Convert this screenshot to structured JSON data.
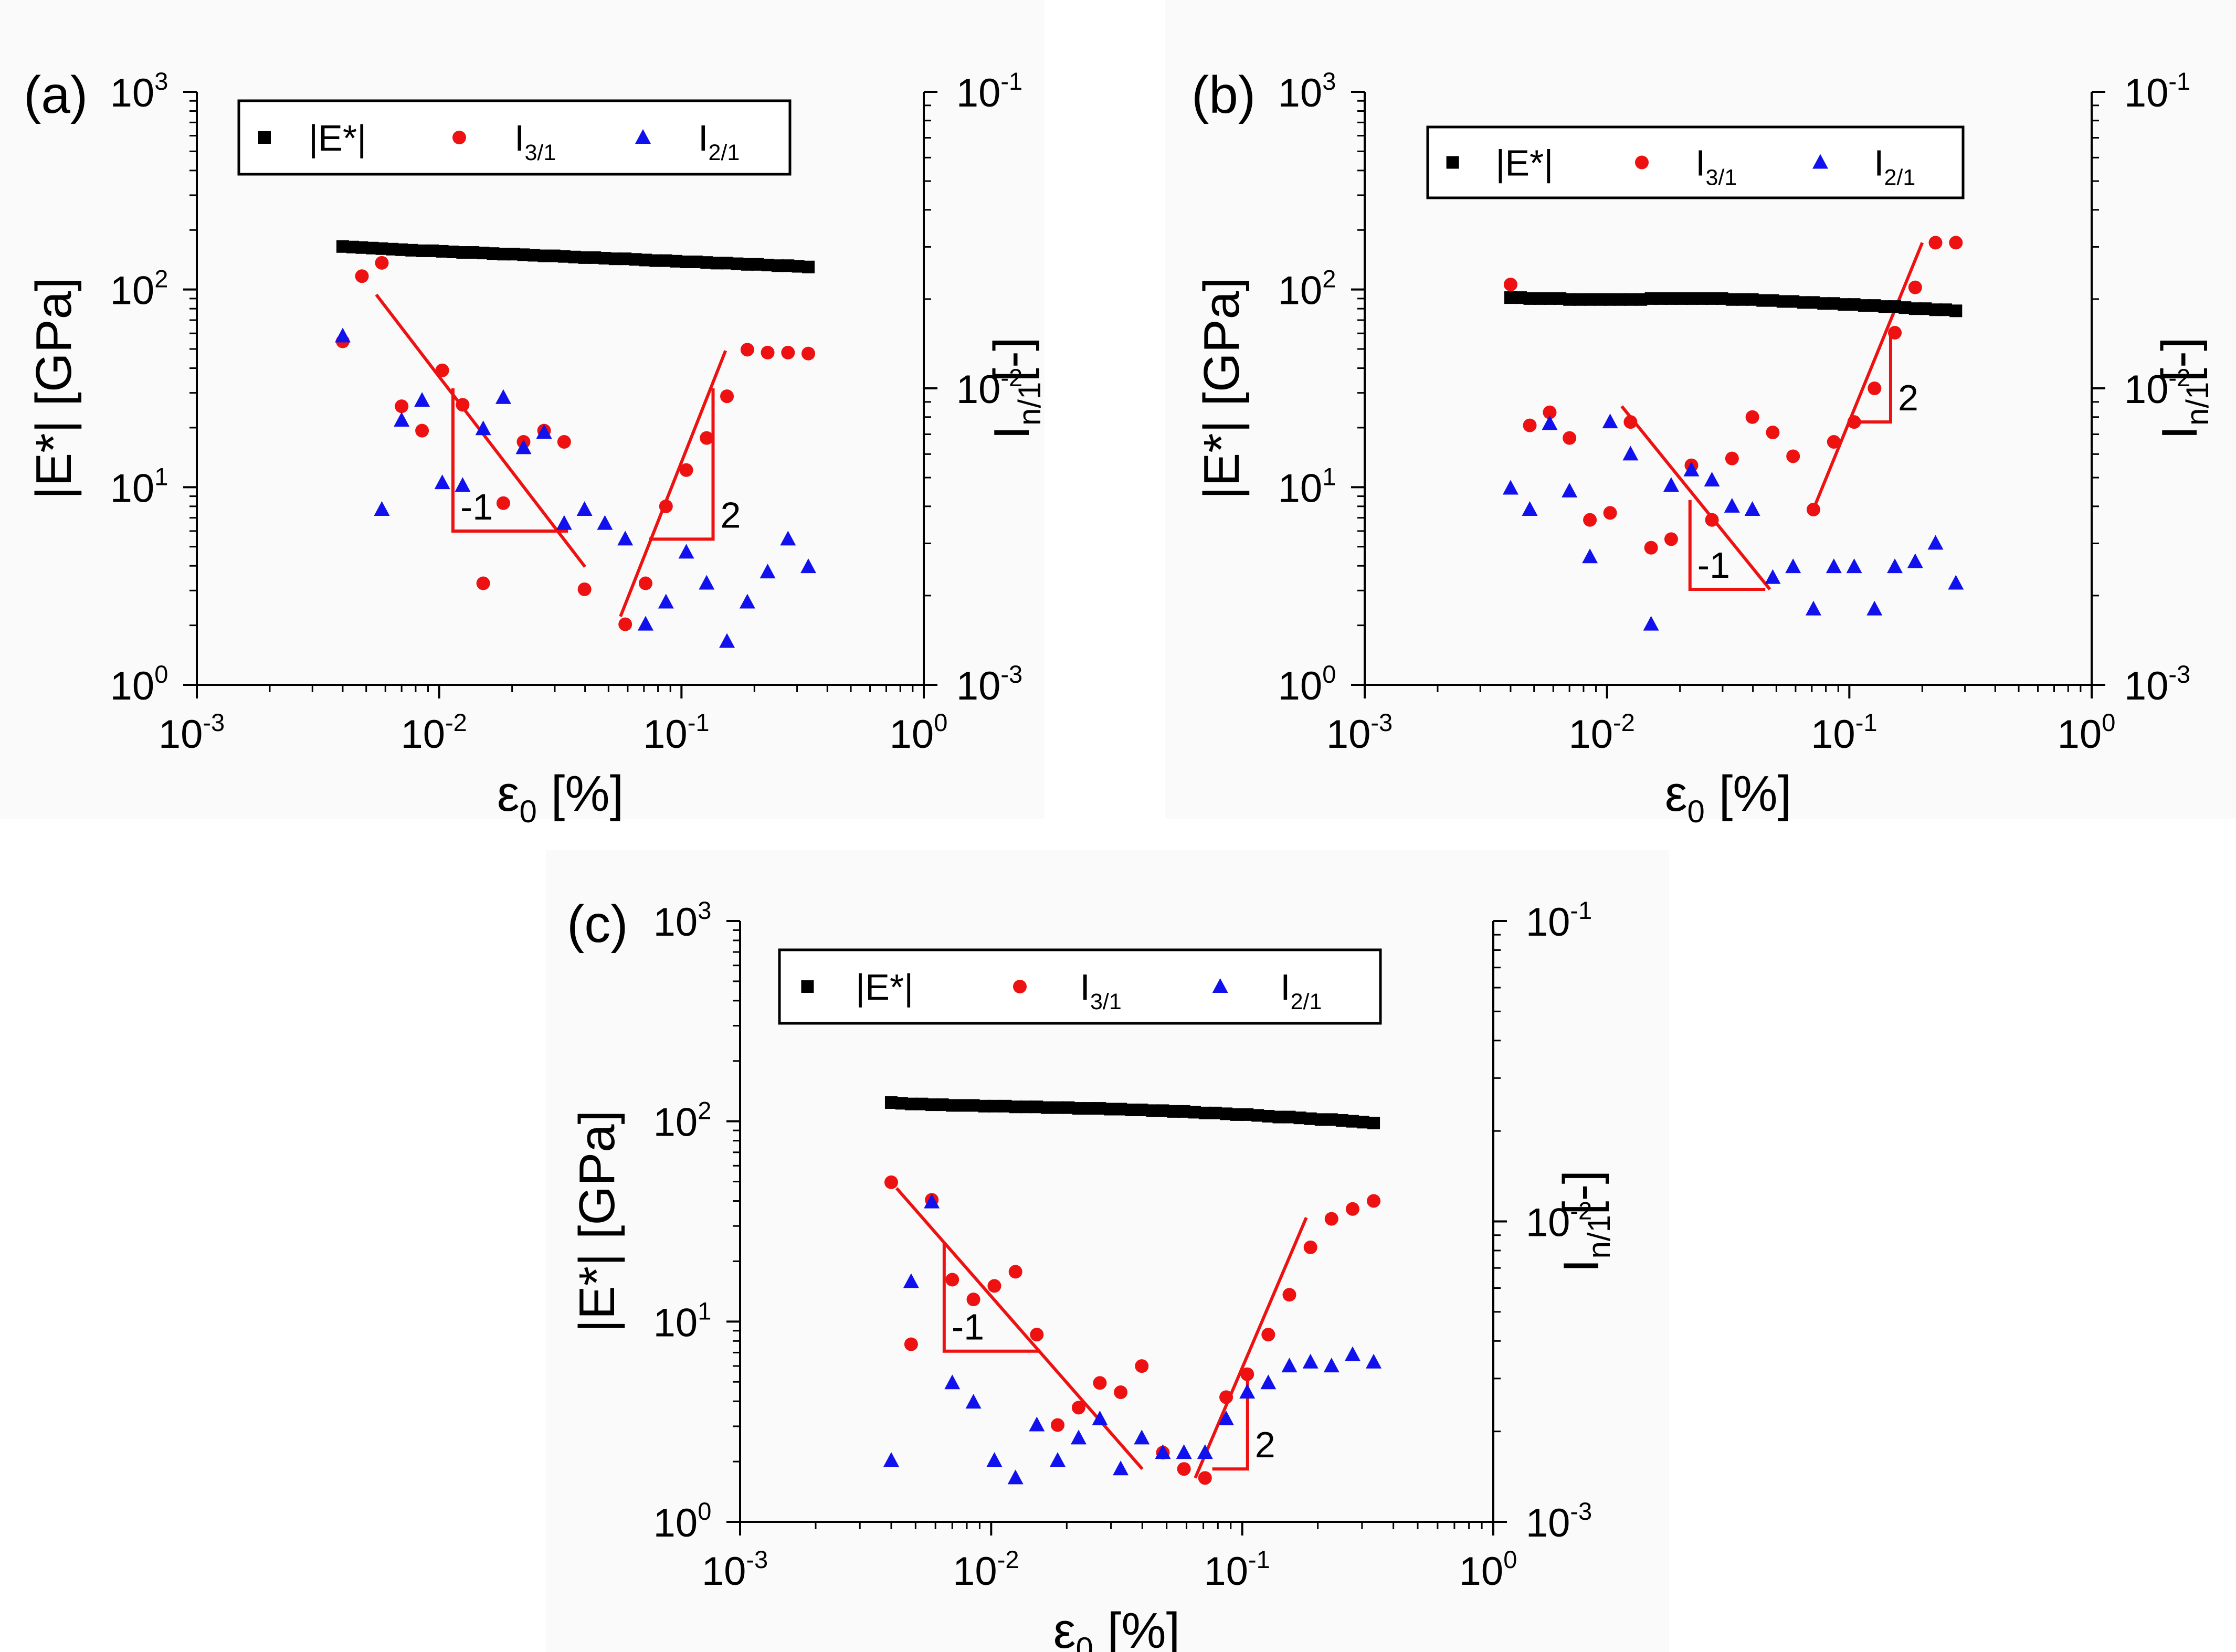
{
  "colors": {
    "modulus": "#000000",
    "i31": "#ee1111",
    "i21": "#1111ee",
    "slope": "#ee1111",
    "background": "#fafafa"
  },
  "legend": {
    "modulus": "|E*|",
    "i31_main": "I",
    "i31_sub": "3/1",
    "i21_main": "I",
    "i21_sub": "2/1"
  },
  "axes": {
    "x_label_main": "ε",
    "x_label_sub": "0",
    "x_label_unit": " [%]",
    "y_left_label": "|E*| [GPa]",
    "y_right_label_main": "I",
    "y_right_label_sub": "n/1",
    "y_right_label_unit": "[-]",
    "x_tick_labels": [
      "10",
      "10",
      "10",
      "10"
    ],
    "x_tick_exponents": [
      "-3",
      "-2",
      "-1",
      "0"
    ],
    "y_left_tick_labels": [
      "10",
      "10",
      "10",
      "10"
    ],
    "y_left_tick_exponents": [
      "0",
      "1",
      "2",
      "3"
    ],
    "y_right_tick_labels": [
      "10",
      "10",
      "10"
    ],
    "y_right_tick_exponents": [
      "-3",
      "-2",
      "-1"
    ]
  },
  "chart_data": [
    {
      "type": "scatter",
      "panel_label": "(a)",
      "xlabel": "ε0 [%]",
      "ylabel": "|E*| [GPa]",
      "y2label": "In/1 [-]",
      "xscale": "log",
      "xlim": [
        0.001,
        1
      ],
      "yscale": "log",
      "ylim": [
        1,
        1000
      ],
      "y2scale": "log",
      "y2lim": [
        0.001,
        0.1
      ],
      "legend_position": "top",
      "series": [
        {
          "name": "|E*|",
          "axis": "left",
          "marker": "square",
          "x": [
            0.004,
            0.0044,
            0.0048,
            0.0053,
            0.0058,
            0.0064,
            0.007,
            0.0077,
            0.0085,
            0.0094,
            0.0103,
            0.0114,
            0.0125,
            0.0138,
            0.0152,
            0.0167,
            0.0184,
            0.0203,
            0.0223,
            0.0246,
            0.0271,
            0.0298,
            0.0328,
            0.0362,
            0.0398,
            0.0439,
            0.0483,
            0.0532,
            0.0586,
            0.0646,
            0.0711,
            0.0783,
            0.0863,
            0.095,
            0.1047,
            0.1153,
            0.127,
            0.1399,
            0.1541,
            0.1697,
            0.187,
            0.206,
            0.2268,
            0.2498,
            0.2752,
            0.3031,
            0.3338
          ],
          "y": [
            165,
            164,
            163,
            162,
            161,
            160,
            159,
            158,
            157,
            157,
            156,
            155,
            154,
            154,
            153,
            152,
            151,
            151,
            150,
            149,
            148,
            148,
            147,
            146,
            145,
            145,
            144,
            143,
            143,
            142,
            141,
            140,
            140,
            139,
            138,
            138,
            137,
            136,
            136,
            135,
            134,
            134,
            133,
            132,
            132,
            131,
            130
          ]
        },
        {
          "name": "I3/1",
          "axis": "right",
          "marker": "circle",
          "x": [
            0.004,
            0.0048,
            0.0058,
            0.007,
            0.0085,
            0.0103,
            0.0125,
            0.0152,
            0.0184,
            0.0223,
            0.0271,
            0.0328,
            0.0398,
            0.0586,
            0.0711,
            0.0863,
            0.1047,
            0.127,
            0.1541,
            0.187,
            0.2268,
            0.2752,
            0.3338
          ],
          "y": [
            0.0144,
            0.0239,
            0.0265,
            0.0087,
            0.0072,
            0.0115,
            0.0088,
            0.0022,
            0.0041,
            0.0066,
            0.0072,
            0.0066,
            0.0021,
            0.0016,
            0.0022,
            0.004,
            0.0053,
            0.0068,
            0.0094,
            0.0135,
            0.0132,
            0.0132,
            0.0131
          ]
        },
        {
          "name": "I2/1",
          "axis": "right",
          "marker": "triangle",
          "x": [
            0.004,
            0.0058,
            0.007,
            0.0085,
            0.0103,
            0.0125,
            0.0152,
            0.0184,
            0.0223,
            0.0271,
            0.0328,
            0.0398,
            0.0483,
            0.0586,
            0.0711,
            0.0863,
            0.1047,
            0.127,
            0.1541,
            0.187,
            0.2268,
            0.2752,
            0.3338
          ],
          "y": [
            0.015,
            0.0039,
            0.0078,
            0.0091,
            0.0048,
            0.0047,
            0.0073,
            0.0093,
            0.0063,
            0.0071,
            0.0035,
            0.0039,
            0.0035,
            0.0031,
            0.0016,
            0.0019,
            0.0028,
            0.0022,
            0.0014,
            0.0019,
            0.0024,
            0.0031,
            0.0025
          ]
        }
      ],
      "slope_guides": [
        {
          "label": "-1",
          "axis": "right",
          "line": [
            [
              0.0055,
              0.0207
            ],
            [
              0.04,
              0.0025
            ]
          ],
          "triangle": [
            [
              0.0114,
              0.01
            ],
            [
              0.0114,
              0.0033
            ],
            [
              0.034,
              0.0033
            ]
          ]
        },
        {
          "label": "2",
          "axis": "right",
          "line": [
            [
              0.056,
              0.0017
            ],
            [
              0.152,
              0.0134
            ]
          ],
          "triangle": [
            [
              0.0735,
              0.0031
            ],
            [
              0.135,
              0.0031
            ],
            [
              0.135,
              0.01
            ]
          ]
        }
      ]
    },
    {
      "type": "scatter",
      "panel_label": "(b)",
      "xlabel": "ε0 [%]",
      "ylabel": "|E*| [GPa]",
      "y2label": "In/1 [-]",
      "xscale": "log",
      "xlim": [
        0.001,
        1
      ],
      "yscale": "log",
      "ylim": [
        1,
        1000
      ],
      "y2scale": "log",
      "y2lim": [
        0.001,
        0.1
      ],
      "legend_position": "top",
      "series": [
        {
          "name": "|E*|",
          "axis": "left",
          "marker": "square",
          "x": [
            0.004,
            0.0044,
            0.0048,
            0.0053,
            0.0058,
            0.0064,
            0.007,
            0.0077,
            0.0085,
            0.0094,
            0.0103,
            0.0114,
            0.0125,
            0.0138,
            0.0152,
            0.0167,
            0.0184,
            0.0203,
            0.0223,
            0.0246,
            0.0271,
            0.0298,
            0.0328,
            0.0362,
            0.0398,
            0.0439,
            0.0483,
            0.0532,
            0.0586,
            0.0646,
            0.0711,
            0.0783,
            0.0863,
            0.095,
            0.1047,
            0.1153,
            0.127,
            0.1399,
            0.1541,
            0.1697,
            0.187,
            0.206,
            0.2268,
            0.2498,
            0.2752
          ],
          "y": [
            91,
            91,
            90,
            90,
            90,
            90,
            89,
            89,
            89,
            89,
            89,
            89,
            89,
            89,
            90,
            90,
            90,
            90,
            90,
            90,
            90,
            90,
            89,
            89,
            89,
            88,
            88,
            87,
            87,
            86,
            86,
            85,
            85,
            84,
            84,
            83,
            83,
            82,
            82,
            81,
            80,
            80,
            79,
            79,
            78
          ]
        },
        {
          "name": "I3/1",
          "axis": "right",
          "marker": "circle",
          "x": [
            0.004,
            0.0048,
            0.0058,
            0.007,
            0.0085,
            0.0103,
            0.0125,
            0.0152,
            0.0184,
            0.0223,
            0.0271,
            0.0328,
            0.0398,
            0.0483,
            0.0586,
            0.0711,
            0.0863,
            0.1047,
            0.127,
            0.1541,
            0.187,
            0.2268,
            0.2752
          ],
          "y": [
            0.0224,
            0.0075,
            0.0083,
            0.0068,
            0.0036,
            0.0038,
            0.0077,
            0.0029,
            0.0031,
            0.0055,
            0.0036,
            0.0058,
            0.008,
            0.0071,
            0.0059,
            0.0039,
            0.0066,
            0.0077,
            0.01,
            0.0154,
            0.0219,
            0.031,
            0.031
          ]
        },
        {
          "name": "I2/1",
          "axis": "right",
          "marker": "triangle",
          "x": [
            0.004,
            0.0048,
            0.0058,
            0.007,
            0.0085,
            0.0103,
            0.0125,
            0.0152,
            0.0184,
            0.0223,
            0.0271,
            0.0328,
            0.0398,
            0.0483,
            0.0586,
            0.0711,
            0.0863,
            0.1047,
            0.127,
            0.1541,
            0.187,
            0.2268,
            0.2752
          ],
          "y": [
            0.0046,
            0.0039,
            0.0076,
            0.0045,
            0.0027,
            0.0077,
            0.006,
            0.0016,
            0.0047,
            0.0053,
            0.0049,
            0.004,
            0.0039,
            0.0023,
            0.0025,
            0.0018,
            0.0025,
            0.0025,
            0.0018,
            0.0025,
            0.0026,
            0.003,
            0.0022
          ]
        }
      ],
      "slope_guides": [
        {
          "label": "-1",
          "axis": "right",
          "line": [
            [
              0.0115,
              0.0087
            ],
            [
              0.047,
              0.0021
            ]
          ],
          "triangle": [
            [
              0.022,
              0.0042
            ],
            [
              0.022,
              0.0021
            ],
            [
              0.045,
              0.0021
            ]
          ]
        },
        {
          "label": "2",
          "axis": "right",
          "line": [
            [
              0.071,
              0.0039
            ],
            [
              0.2,
              0.031
            ]
          ],
          "triangle": [
            [
              0.103,
              0.0077
            ],
            [
              0.148,
              0.0077
            ],
            [
              0.148,
              0.0157
            ]
          ]
        }
      ]
    },
    {
      "type": "scatter",
      "panel_label": "(c)",
      "xlabel": "ε0 [%]",
      "ylabel": "|E*| [GPa]",
      "y2label": "In/1 [-]",
      "xscale": "log",
      "xlim": [
        0.001,
        1
      ],
      "yscale": "log",
      "ylim": [
        1,
        1000
      ],
      "y2scale": "log",
      "y2lim": [
        0.001,
        0.1
      ],
      "legend_position": "top",
      "series": [
        {
          "name": "|E*|",
          "axis": "left",
          "marker": "square",
          "x": [
            0.004,
            0.0044,
            0.0048,
            0.0053,
            0.0058,
            0.0064,
            0.007,
            0.0077,
            0.0085,
            0.0094,
            0.0103,
            0.0114,
            0.0125,
            0.0138,
            0.0152,
            0.0167,
            0.0184,
            0.0203,
            0.0223,
            0.0246,
            0.0271,
            0.0298,
            0.0328,
            0.0362,
            0.0398,
            0.0439,
            0.0483,
            0.0532,
            0.0586,
            0.0646,
            0.0711,
            0.0783,
            0.0863,
            0.095,
            0.1047,
            0.1153,
            0.127,
            0.1399,
            0.1541,
            0.1697,
            0.187,
            0.206,
            0.2268,
            0.2498,
            0.2752,
            0.3031,
            0.3338
          ],
          "y": [
            124,
            123,
            122,
            122,
            121,
            121,
            120,
            120,
            120,
            119,
            119,
            119,
            118,
            118,
            118,
            117,
            117,
            117,
            116,
            116,
            116,
            115,
            115,
            114,
            114,
            113,
            113,
            112,
            112,
            111,
            110,
            110,
            109,
            108,
            108,
            107,
            106,
            105,
            105,
            104,
            103,
            102,
            102,
            101,
            100,
            99,
            98
          ]
        },
        {
          "name": "I3/1",
          "axis": "right",
          "marker": "circle",
          "x": [
            0.004,
            0.0048,
            0.0058,
            0.007,
            0.0085,
            0.0103,
            0.0125,
            0.0152,
            0.0184,
            0.0223,
            0.0271,
            0.0328,
            0.0398,
            0.0483,
            0.0586,
            0.0711,
            0.0863,
            0.1047,
            0.127,
            0.1541,
            0.187,
            0.2268,
            0.2752,
            0.3338
          ],
          "y": [
            0.0135,
            0.0039,
            0.0118,
            0.0064,
            0.0055,
            0.0061,
            0.0068,
            0.0042,
            0.0021,
            0.0024,
            0.0029,
            0.0027,
            0.0033,
            0.0017,
            0.0015,
            0.0014,
            0.0026,
            0.0031,
            0.0042,
            0.0057,
            0.0082,
            0.0102,
            0.011,
            0.0117
          ]
        },
        {
          "name": "I2/1",
          "axis": "right",
          "marker": "triangle",
          "x": [
            0.004,
            0.0048,
            0.0058,
            0.007,
            0.0085,
            0.0103,
            0.0125,
            0.0152,
            0.0184,
            0.0223,
            0.0271,
            0.0328,
            0.0398,
            0.0483,
            0.0586,
            0.0711,
            0.0863,
            0.1047,
            0.127,
            0.1541,
            0.187,
            0.2268,
            0.2752,
            0.3338
          ],
          "y": [
            0.0016,
            0.0063,
            0.0116,
            0.0029,
            0.0025,
            0.0016,
            0.0014,
            0.0021,
            0.0016,
            0.0019,
            0.0022,
            0.0015,
            0.0019,
            0.0017,
            0.0017,
            0.0017,
            0.0022,
            0.0027,
            0.0029,
            0.0033,
            0.0034,
            0.0033,
            0.0036,
            0.0034
          ]
        }
      ],
      "slope_guides": [
        {
          "label": "-1",
          "axis": "right",
          "line": [
            [
              0.0042,
              0.0129
            ],
            [
              0.04,
              0.0015
            ]
          ],
          "triangle": [
            [
              0.0065,
              0.0085
            ],
            [
              0.0065,
              0.0037
            ],
            [
              0.0155,
              0.0037
            ]
          ]
        },
        {
          "label": "2",
          "axis": "right",
          "line": [
            [
              0.065,
              0.0014
            ],
            [
              0.18,
              0.0103
            ]
          ],
          "triangle": [
            [
              0.076,
              0.0015
            ],
            [
              0.105,
              0.0015
            ],
            [
              0.105,
              0.003
            ]
          ]
        }
      ]
    }
  ]
}
